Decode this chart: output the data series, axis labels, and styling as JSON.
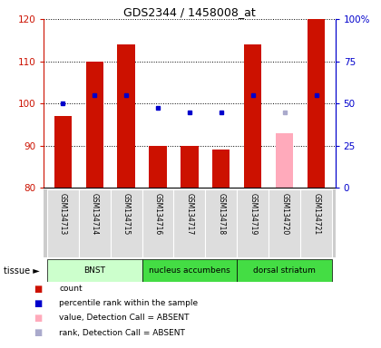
{
  "title": "GDS2344 / 1458008_at",
  "samples": [
    "GSM134713",
    "GSM134714",
    "GSM134715",
    "GSM134716",
    "GSM134717",
    "GSM134718",
    "GSM134719",
    "GSM134720",
    "GSM134721"
  ],
  "bar_values": [
    97,
    110,
    114,
    90,
    90,
    89,
    114,
    93,
    120
  ],
  "bar_colors": [
    "#cc1100",
    "#cc1100",
    "#cc1100",
    "#cc1100",
    "#cc1100",
    "#cc1100",
    "#cc1100",
    "#ffaabb",
    "#cc1100"
  ],
  "rank_values": [
    100,
    102,
    102,
    99,
    98,
    98,
    102,
    98,
    102
  ],
  "rank_colors": [
    "#0000cc",
    "#0000cc",
    "#0000cc",
    "#0000cc",
    "#0000cc",
    "#0000cc",
    "#0000cc",
    "#aaaacc",
    "#0000cc"
  ],
  "ylim_left": [
    80,
    120
  ],
  "ylim_right": [
    0,
    100
  ],
  "yticks_left": [
    80,
    90,
    100,
    110,
    120
  ],
  "yticks_right": [
    0,
    25,
    50,
    75,
    100
  ],
  "yticklabels_right": [
    "0",
    "25",
    "50",
    "75",
    "100%"
  ],
  "tissue_groups": [
    {
      "label": "BNST",
      "start": 0,
      "end": 2,
      "color": "#ccffcc"
    },
    {
      "label": "nucleus accumbens",
      "start": 3,
      "end": 5,
      "color": "#44dd44"
    },
    {
      "label": "dorsal striatum",
      "start": 6,
      "end": 8,
      "color": "#44dd44"
    }
  ],
  "legend_items": [
    {
      "color": "#cc1100",
      "label": "count"
    },
    {
      "color": "#0000cc",
      "label": "percentile rank within the sample"
    },
    {
      "color": "#ffaabb",
      "label": "value, Detection Call = ABSENT"
    },
    {
      "color": "#aaaacc",
      "label": "rank, Detection Call = ABSENT"
    }
  ],
  "background_color": "#ffffff",
  "left_axis_color": "#cc1100",
  "right_axis_color": "#0000cc"
}
